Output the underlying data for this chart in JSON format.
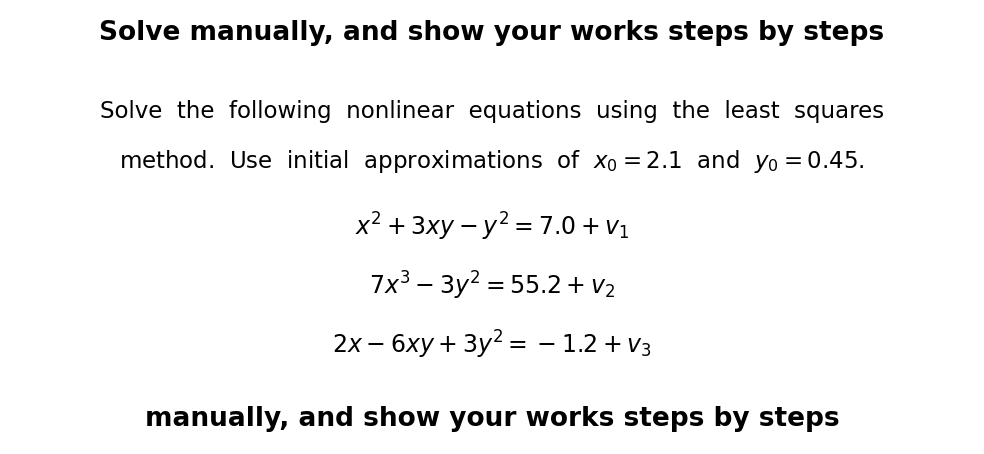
{
  "title": "Solve manually, and show your works steps by steps",
  "title_fontsize": 19,
  "intro_line1": "Solve  the  following  nonlinear  equations  using  the  least  squares",
  "intro_line2": "method.  Use  initial  approximations  of  $x_0 = 2.1$  and  $y_0 = 0.45$.",
  "eq1": "$x^2 + 3xy - y^2 = 7.0 + v_1$",
  "eq2": "$7x^3 - 3y^2 = 55.2 + v_2$",
  "eq3": "$2x - 6xy + 3y^2 = -1.2 + v_3$",
  "footer": "manually, and show your works steps by steps",
  "footer_fontsize": 19,
  "bg_color": "#ffffff",
  "text_color": "#000000",
  "eq_fontsize": 17,
  "intro_fontsize": 16.5
}
